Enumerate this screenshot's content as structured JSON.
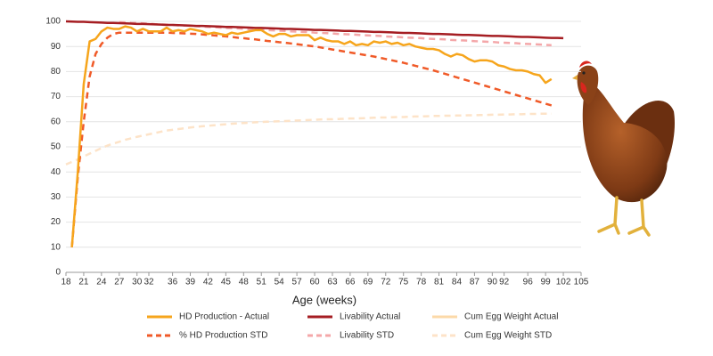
{
  "chart_data": {
    "type": "line",
    "xlabel": "Age (weeks)",
    "x": [
      18,
      19,
      20,
      21,
      22,
      23,
      24,
      25,
      26,
      27,
      28,
      29,
      30,
      31,
      32,
      33,
      34,
      35,
      36,
      37,
      38,
      39,
      40,
      41,
      42,
      43,
      44,
      45,
      46,
      47,
      48,
      49,
      50,
      51,
      52,
      53,
      54,
      55,
      56,
      57,
      58,
      59,
      60,
      61,
      62,
      63,
      64,
      65,
      66,
      67,
      68,
      69,
      70,
      71,
      72,
      73,
      74,
      75,
      76,
      77,
      78,
      79,
      80,
      81,
      82,
      83,
      84,
      85,
      86,
      87,
      88,
      89,
      90,
      91,
      92,
      93,
      94,
      95,
      96,
      97,
      98,
      99,
      100,
      101,
      102
    ],
    "xlim": [
      18,
      105
    ],
    "xticks": [
      18,
      21,
      24,
      27,
      30,
      32,
      36,
      39,
      42,
      45,
      48,
      51,
      54,
      57,
      60,
      63,
      66,
      69,
      72,
      75,
      78,
      81,
      84,
      87,
      90,
      92,
      96,
      99,
      102,
      105
    ],
    "ylim": [
      0,
      100
    ],
    "yticks": [
      0,
      10,
      20,
      30,
      40,
      50,
      60,
      70,
      80,
      90,
      100
    ],
    "grid": true,
    "series": [
      {
        "name": "HD Production - Actual",
        "color": "#f6a51c",
        "dashed": false,
        "values": [
          null,
          10,
          40,
          75,
          92,
          93,
          96,
          97.5,
          97,
          97,
          98,
          97.5,
          96,
          97,
          96,
          96,
          96,
          97.5,
          96,
          96.5,
          96,
          97,
          96.5,
          96,
          95,
          95.5,
          95,
          94.5,
          95.5,
          95,
          95.5,
          96,
          96.5,
          96.5,
          95,
          94,
          95,
          95,
          94,
          94.5,
          94.5,
          94.5,
          92.5,
          93.5,
          92.5,
          92,
          92,
          91,
          92,
          90.5,
          91,
          90.5,
          92,
          91.5,
          92,
          91,
          91.5,
          90.5,
          91,
          90,
          89.5,
          89,
          89,
          88.5,
          87,
          86,
          87,
          86.5,
          85,
          84,
          84.5,
          84.5,
          84,
          82.5,
          82,
          81,
          80.5,
          80.5,
          80,
          79,
          78.5,
          75.5,
          77,
          null,
          null
        ]
      },
      {
        "name": "Livability Actual",
        "color": "#a51d22",
        "dashed": false,
        "values": [
          100,
          99.9,
          99.8,
          99.8,
          99.7,
          99.6,
          99.5,
          99.4,
          99.4,
          99.3,
          99.2,
          99.1,
          99,
          99,
          98.9,
          98.8,
          98.7,
          98.6,
          98.6,
          98.5,
          98.4,
          98.3,
          98.2,
          98.2,
          98.1,
          98,
          97.9,
          97.8,
          97.8,
          97.7,
          97.6,
          97.5,
          97.4,
          97.4,
          97.3,
          97.2,
          97.1,
          97,
          97,
          96.9,
          96.8,
          96.7,
          96.6,
          96.6,
          96.5,
          96.4,
          96.3,
          96.2,
          96.2,
          96.1,
          96,
          95.9,
          95.8,
          95.8,
          95.7,
          95.6,
          95.5,
          95.4,
          95.4,
          95.3,
          95.2,
          95.1,
          95,
          95,
          94.9,
          94.8,
          94.7,
          94.6,
          94.6,
          94.5,
          94.4,
          94.3,
          94.2,
          94.2,
          94.1,
          94,
          93.9,
          93.8,
          93.8,
          93.7,
          93.6,
          93.5,
          93.4,
          93.4,
          93.3
        ]
      },
      {
        "name": "Cum Egg Weight Actual",
        "color": "#fcd9a8",
        "dashed": false,
        "values": [
          null,
          null,
          null,
          null,
          null,
          null,
          null,
          null,
          null,
          null,
          null,
          null,
          null,
          null,
          null,
          null,
          null,
          null,
          null,
          null,
          null,
          null,
          null,
          null,
          null,
          null,
          null,
          null,
          null,
          null,
          null,
          null,
          null,
          null,
          null,
          null,
          null,
          null,
          null,
          null,
          null,
          null,
          null,
          null,
          null,
          null,
          null,
          null,
          null,
          null,
          null,
          null,
          null,
          null,
          null,
          null,
          null,
          null,
          null,
          null,
          null,
          null,
          null,
          null,
          null,
          null,
          null,
          null,
          null,
          null,
          null,
          null,
          null,
          null,
          null,
          null,
          null,
          null,
          null,
          null,
          null,
          null,
          null,
          null,
          null
        ]
      },
      {
        "name": "% HD Production STD",
        "color": "#f05a28",
        "dashed": true,
        "values": [
          null,
          10,
          38,
          60,
          78,
          87,
          91,
          93.5,
          95,
          95.5,
          95.5,
          95.5,
          95.5,
          95.5,
          95.5,
          95.5,
          95.5,
          95.5,
          95.4,
          95.3,
          95.2,
          95.1,
          95,
          94.8,
          94.6,
          94.4,
          94.2,
          94,
          93.8,
          93.5,
          93.3,
          93,
          92.8,
          92.5,
          92.2,
          92,
          91.7,
          91.5,
          91.2,
          90.9,
          90.6,
          90.3,
          90,
          89.6,
          89.2,
          88.8,
          88.4,
          88,
          87.6,
          87.2,
          86.8,
          86.4,
          86,
          85.5,
          85,
          84.5,
          84,
          83.5,
          82.9,
          82.3,
          81.7,
          81.1,
          80.5,
          79.8,
          79.1,
          78.4,
          77.7,
          77,
          76.3,
          75.6,
          74.9,
          74.2,
          73.5,
          72.8,
          72.1,
          71.4,
          70.7,
          70,
          69.3,
          68.6,
          67.9,
          67.2,
          66.5,
          null,
          null
        ]
      },
      {
        "name": "Livability STD",
        "color": "#f4a7a9",
        "dashed": true,
        "values": [
          null,
          null,
          null,
          null,
          null,
          null,
          null,
          null,
          null,
          99.7,
          99.6,
          99.4,
          99.3,
          99.2,
          99.1,
          98.9,
          98.8,
          98.7,
          98.6,
          98.4,
          98.3,
          98.2,
          98.1,
          97.9,
          97.8,
          97.7,
          97.5,
          97.4,
          97.3,
          97.2,
          97,
          96.9,
          96.8,
          96.7,
          96.5,
          96.4,
          96.3,
          96.2,
          96,
          95.9,
          95.8,
          95.7,
          95.5,
          95.4,
          95.3,
          95.2,
          95,
          94.9,
          94.8,
          94.7,
          94.5,
          94.4,
          94.3,
          94.2,
          94,
          93.9,
          93.8,
          93.6,
          93.5,
          93.4,
          93.3,
          93.1,
          93,
          92.9,
          92.8,
          92.6,
          92.5,
          92.4,
          92.3,
          92.1,
          92,
          91.9,
          91.8,
          91.6,
          91.5,
          91.4,
          91.3,
          91.1,
          91,
          90.9,
          90.8,
          90.6,
          90.5,
          null,
          null
        ]
      },
      {
        "name": "Cum Egg Weight STD",
        "color": "#fde3c8",
        "dashed": true,
        "values": [
          43,
          44,
          45,
          46.2,
          47.3,
          48.4,
          49.5,
          50.5,
          51.3,
          52,
          52.8,
          53.4,
          54,
          54.5,
          55,
          55.5,
          56,
          56.5,
          56.8,
          57.1,
          57.4,
          57.7,
          58,
          58.2,
          58.4,
          58.6,
          58.8,
          59,
          59.2,
          59.3,
          59.5,
          59.6,
          59.8,
          59.9,
          60,
          60.1,
          60.2,
          60.3,
          60.4,
          60.5,
          60.6,
          60.7,
          60.8,
          60.9,
          61,
          61,
          61.1,
          61.2,
          61.3,
          61.3,
          61.4,
          61.5,
          61.6,
          61.7,
          61.7,
          61.8,
          61.9,
          61.9,
          62,
          62.1,
          62.1,
          62.2,
          62.3,
          62.3,
          62.4,
          62.4,
          62.5,
          62.5,
          62.6,
          62.6,
          62.7,
          62.7,
          62.8,
          62.8,
          62.9,
          62.9,
          63,
          63,
          63.1,
          63.1,
          63.2,
          63.2,
          63.2,
          null,
          null
        ]
      }
    ]
  }
}
